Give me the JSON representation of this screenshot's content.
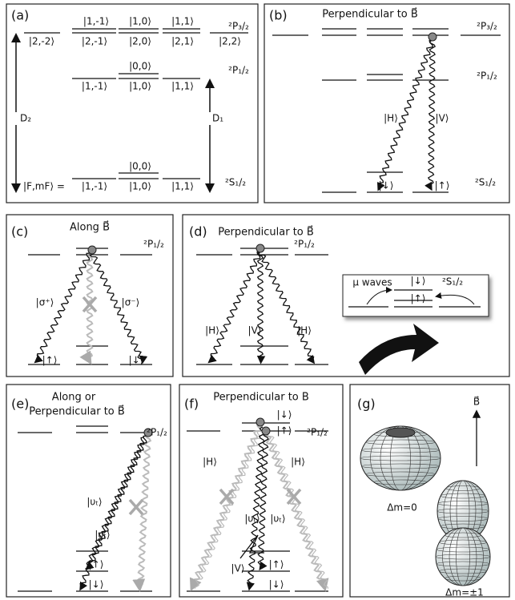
{
  "panels": {
    "a": {
      "label": "(a)",
      "texts": [
        "|1,-1⟩",
        "|1,0⟩",
        "|1,1⟩",
        "|2,-2⟩",
        "|2,-1⟩",
        "|2,0⟩",
        "|2,1⟩",
        "|2,2⟩",
        "|0,0⟩",
        "|1,-1⟩",
        "|1,0⟩",
        "|1,1⟩",
        "|0,0⟩",
        "|F,mF⟩ =",
        "|1,-1⟩",
        "|1,0⟩",
        "|1,1⟩",
        "D₂",
        "D₁",
        "²P₃/₂",
        "²P₁/₂",
        "²S₁/₂"
      ]
    },
    "b": {
      "label": "(b)",
      "title": "Perpendicular to B⃗",
      "texts": [
        "²P₃/₂",
        "²P₁/₂",
        "|H⟩",
        "|V⟩",
        "|↓⟩",
        "|↑⟩",
        "²S₁/₂"
      ]
    },
    "c": {
      "label": "(c)",
      "title": "Along B⃗",
      "texts": [
        "²P₁/₂",
        "|σ⁺⟩",
        "|σ⁻⟩",
        "|↑⟩",
        "|↓⟩"
      ]
    },
    "d": {
      "label": "(d)",
      "title": "Perpendicular to B⃗",
      "texts": [
        "²P₁/₂",
        "|H⟩",
        "|V⟩",
        "|H⟩",
        "μ waves",
        "²S₁/₂",
        "|↓⟩",
        "|↑⟩"
      ]
    },
    "e": {
      "label": "(e)",
      "title": [
        "Along or",
        "Perpendicular to B⃗"
      ],
      "texts": [
        "²P₁/₂",
        "|υₜ⟩",
        "|υₜ⟩",
        "|↑⟩",
        "|↓⟩"
      ]
    },
    "f": {
      "label": "(f)",
      "title": "Perpendicular to B",
      "texts": [
        "|↓⟩",
        "|↑⟩",
        "²P₁/₂",
        "|H⟩",
        "|H⟩",
        "|υₜ⟩",
        "|υₜ⟩",
        "|V⟩",
        "|↑⟩",
        "|↓⟩"
      ]
    },
    "g": {
      "label": "(g)",
      "texts": [
        "B⃗",
        "Δm=0",
        "Δm=±1"
      ]
    }
  }
}
